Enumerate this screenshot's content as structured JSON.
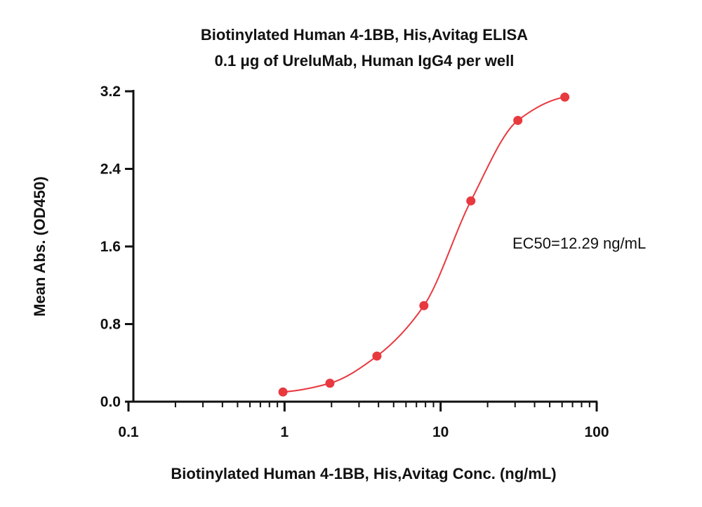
{
  "chart_data": {
    "type": "scatter",
    "title": "Biotinylated Human 4-1BB, His,Avitag ELISA",
    "subtitle": "0.1 μg of UreluMab, Human IgG4 per well",
    "xlabel": "Biotinylated Human 4-1BB, His,Avitag Conc. (ng/mL)",
    "ylabel": "Mean Abs. (OD450)",
    "x_scale": "log",
    "xlim": [
      0.1,
      100
    ],
    "ylim": [
      0,
      3.2
    ],
    "x_ticks": [
      0.1,
      1,
      10,
      100
    ],
    "x_tick_labels": [
      "0.1",
      "1",
      "10",
      "100"
    ],
    "y_ticks": [
      0,
      0.8,
      1.6,
      2.4,
      3.2
    ],
    "y_tick_labels": [
      "0.0",
      "0.8",
      "1.6",
      "2.4",
      "3.2"
    ],
    "grid": false,
    "color": "#e8393f",
    "series": [
      {
        "x": [
          0.977,
          1.953,
          3.906,
          7.813,
          15.625,
          31.25,
          62.5
        ],
        "y": [
          0.1,
          0.19,
          0.47,
          0.99,
          2.07,
          2.9,
          3.14
        ],
        "fit": "4PL"
      }
    ],
    "annotations": [
      {
        "text": "EC50=12.29 ng/mL"
      }
    ]
  }
}
